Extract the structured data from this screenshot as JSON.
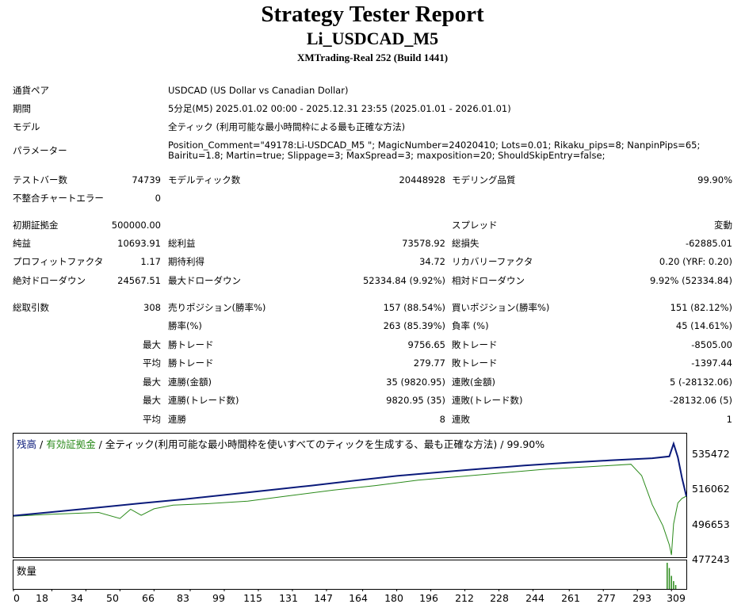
{
  "header": {
    "title": "Strategy Tester Report",
    "subtitle": "Li_USDCAD_M5",
    "server": "XMTrading-Real 252 (Build 1441)"
  },
  "settings": [
    {
      "label": "通貨ペア",
      "value": "USDCAD (US Dollar vs Canadian Dollar)"
    },
    {
      "label": "期間",
      "value": "5分足(M5) 2025.01.02 00:00 - 2025.12.31 23:55 (2025.01.01 - 2026.01.01)"
    },
    {
      "label": "モデル",
      "value": "全ティック (利用可能な最小時間枠による最も正確な方法)"
    },
    {
      "label": "パラメーター",
      "value": "Position_Comment=\"49178:Li-USDCAD_M5 \"; MagicNumber=24020410; Lots=0.01; Rikaku_pips=8; NanpinPips=65; Bairitu=1.8; Martin=true; Slippage=3; MaxSpread=3; maxposition=20; ShouldSkipEntry=false;"
    }
  ],
  "stats": {
    "bars_label": "テストバー数",
    "bars": "74739",
    "ticks_label": "モデルティック数",
    "ticks": "20448928",
    "quality_label": "モデリング品質",
    "quality": "99.90%",
    "mismatch_label": "不整合チャートエラー",
    "mismatch": "0",
    "deposit_label": "初期証拠金",
    "deposit": "500000.00",
    "spread_label": "スプレッド",
    "spread": "変動",
    "net_label": "純益",
    "net": "10693.91",
    "gross_profit_label": "総利益",
    "gross_profit": "73578.92",
    "gross_loss_label": "総損失",
    "gross_loss": "-62885.01",
    "pf_label": "プロフィットファクタ",
    "pf": "1.17",
    "expected_label": "期待利得",
    "expected": "34.72",
    "recovery_label": "リカバリーファクタ",
    "recovery": "0.20 (YRF: 0.20)",
    "abs_dd_label": "絶対ドローダウン",
    "abs_dd": "24567.51",
    "max_dd_label": "最大ドローダウン",
    "max_dd": "52334.84 (9.92%)",
    "rel_dd_label": "相対ドローダウン",
    "rel_dd": "9.92% (52334.84)",
    "trades_label": "総取引数",
    "trades": "308",
    "short_label": "売りポジション(勝率%)",
    "short": "157 (88.54%)",
    "long_label": "買いポジション(勝率%)",
    "long": "151 (82.12%)",
    "win_rate_label": "勝率(%)",
    "win_rate": "263 (85.39%)",
    "loss_rate_label": "負率 (%)",
    "loss_rate": "45 (14.61%)",
    "max_word": "最大",
    "avg_word": "平均",
    "largest_win_label": "勝トレード",
    "largest_win": "9756.65",
    "largest_loss_label": "敗トレード",
    "largest_loss": "-8505.00",
    "avg_win_label": "勝トレード",
    "avg_win": "279.77",
    "avg_loss_label": "敗トレード",
    "avg_loss": "-1397.44",
    "max_consec_wins_label": "連勝(金額)",
    "max_consec_wins": "35 (9820.95)",
    "max_consec_losses_label": "連敗(金額)",
    "max_consec_losses": "5 (-28132.06)",
    "max_consec_profit_label": "連勝(トレード数)",
    "max_consec_profit": "9820.95 (35)",
    "max_consec_loss_label": "連敗(トレード数)",
    "max_consec_loss": "-28132.06 (5)",
    "avg_consec_wins_label": "連勝",
    "avg_consec_wins": "8",
    "avg_consec_losses_label": "連敗",
    "avg_consec_losses": "1"
  },
  "chart_data": {
    "type": "line",
    "legend": {
      "balance": "残高",
      "sep1": " / ",
      "equity": "有効証拠金",
      "sep2": " / ",
      "model": "全ティック(利用可能な最小時間枠を使いすべてのティックを生成する、最も正確な方法)",
      "sep3": " / ",
      "quality": "99.90%"
    },
    "colors": {
      "balance": "#0a1a7a",
      "equity": "#2a8a1a",
      "volume": "#2a8a1a"
    },
    "ylim": [
      477243,
      545000
    ],
    "yticks": [
      "535472",
      "516062",
      "496653",
      "477243"
    ],
    "xlim": [
      0,
      316
    ],
    "xticks": [
      "0",
      "18",
      "34",
      "50",
      "66",
      "83",
      "99",
      "115",
      "131",
      "147",
      "164",
      "180",
      "196",
      "212",
      "228",
      "244",
      "261",
      "277",
      "293",
      "309"
    ],
    "volume_label": "数量",
    "series": [
      {
        "name": "残高",
        "x": [
          0,
          20,
          40,
          60,
          80,
          100,
          120,
          140,
          160,
          180,
          200,
          220,
          240,
          260,
          280,
          300,
          308,
          310,
          312,
          314,
          316
        ],
        "values": [
          500000,
          502200,
          504500,
          506800,
          509000,
          511500,
          514000,
          516500,
          519200,
          521800,
          523800,
          525700,
          527500,
          529000,
          530300,
          531500,
          532500,
          539500,
          532000,
          520500,
          510693.91
        ]
      },
      {
        "name": "有効証拠金",
        "x": [
          0,
          18,
          40,
          50,
          55,
          60,
          66,
          75,
          90,
          110,
          130,
          150,
          170,
          190,
          210,
          230,
          250,
          270,
          290,
          295,
          300,
          305,
          308,
          309,
          310,
          312,
          314,
          316
        ],
        "values": [
          499700,
          500800,
          501800,
          498500,
          503500,
          500200,
          503800,
          505800,
          506500,
          508000,
          511000,
          514000,
          516500,
          519500,
          521500,
          523500,
          525500,
          526800,
          528200,
          522000,
          506000,
          494500,
          484000,
          478500,
          495500,
          507000,
          509500,
          510693.91
        ]
      }
    ],
    "volume": {
      "x": [
        307,
        308,
        309,
        310,
        311
      ],
      "values": [
        1.0,
        0.8,
        0.5,
        0.3,
        0.15
      ]
    }
  }
}
